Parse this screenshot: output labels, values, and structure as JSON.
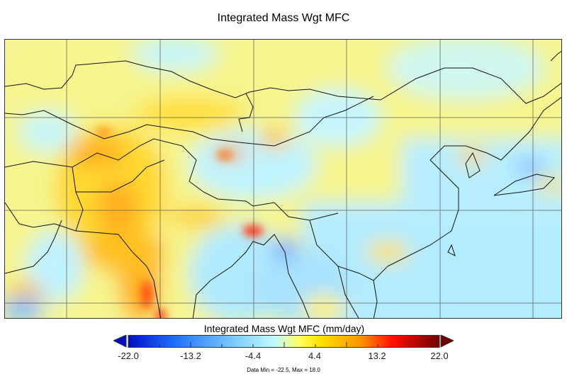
{
  "title": "Integrated Mass Wgt MFC",
  "colorbar": {
    "label": "Integrated Mass Wgt MFC (mm/day)",
    "ticks": [
      "-22.0",
      "-13.2",
      "-4.4",
      "4.4",
      "13.2",
      "22.0"
    ],
    "range": [
      -22.0,
      22.0
    ],
    "colors": [
      "#0010c0",
      "#2070ff",
      "#80d0ff",
      "#c0faff",
      "#ffff60",
      "#ffd000",
      "#ff9000",
      "#ff1000",
      "#c00000",
      "#700000"
    ]
  },
  "data_range_text": "Data Min = -22.5, Max = 18.0"
}
